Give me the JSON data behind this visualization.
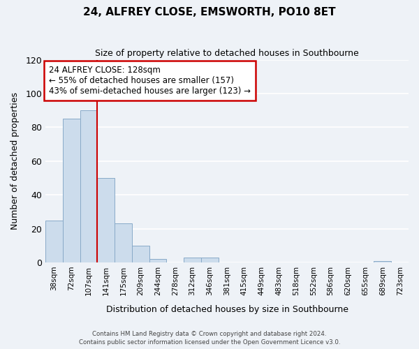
{
  "title": "24, ALFREY CLOSE, EMSWORTH, PO10 8ET",
  "subtitle": "Size of property relative to detached houses in Southbourne",
  "xlabel": "Distribution of detached houses by size in Southbourne",
  "ylabel": "Number of detached properties",
  "bin_labels": [
    "38sqm",
    "72sqm",
    "107sqm",
    "141sqm",
    "175sqm",
    "209sqm",
    "244sqm",
    "278sqm",
    "312sqm",
    "346sqm",
    "381sqm",
    "415sqm",
    "449sqm",
    "483sqm",
    "518sqm",
    "552sqm",
    "586sqm",
    "620sqm",
    "655sqm",
    "689sqm",
    "723sqm"
  ],
  "bar_heights": [
    25,
    85,
    90,
    50,
    23,
    10,
    2,
    0,
    3,
    3,
    0,
    0,
    0,
    0,
    0,
    0,
    0,
    0,
    0,
    1,
    0
  ],
  "bar_color": "#ccdcec",
  "bar_edge_color": "#88aac8",
  "ylim": [
    0,
    120
  ],
  "yticks": [
    0,
    20,
    40,
    60,
    80,
    100,
    120
  ],
  "vline_color": "#cc0000",
  "vline_position": 3.0,
  "annotation_title": "24 ALFREY CLOSE: 128sqm",
  "annotation_line1": "← 55% of detached houses are smaller (157)",
  "annotation_line2": "43% of semi-detached houses are larger (123) →",
  "annotation_box_color": "#ffffff",
  "annotation_box_edge_color": "#cc0000",
  "background_color": "#eef2f7",
  "grid_color": "#ffffff",
  "footer_line1": "Contains HM Land Registry data © Crown copyright and database right 2024.",
  "footer_line2": "Contains public sector information licensed under the Open Government Licence v3.0."
}
